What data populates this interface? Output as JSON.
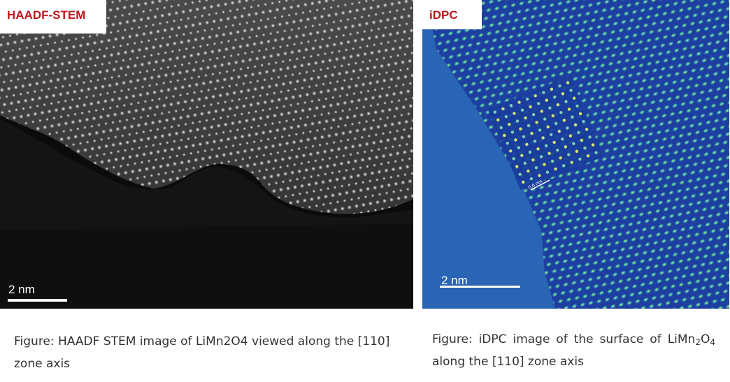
{
  "left_panel": {
    "label": "HAADF-STEM",
    "scale_label": "2 nm",
    "image": "haadf-stem-atomic-lattice",
    "label_color": "#c0161b"
  },
  "right_panel": {
    "label": "iDPC",
    "scale_label": "2 nm",
    "inset_scale_label": "0.6 nm",
    "image": "idpc-atomic-lattice",
    "label_color": "#c0161b"
  },
  "captions": {
    "left": "Figure: HAADF STEM image of LiMn2O4 viewed along the [110] zone axis",
    "right_prefix": "Figure: iDPC image of the surface of LiMn",
    "right_sub1": "2",
    "right_mid": "O",
    "right_sub2": "4",
    "right_suffix": " along the [110] zone axis"
  }
}
